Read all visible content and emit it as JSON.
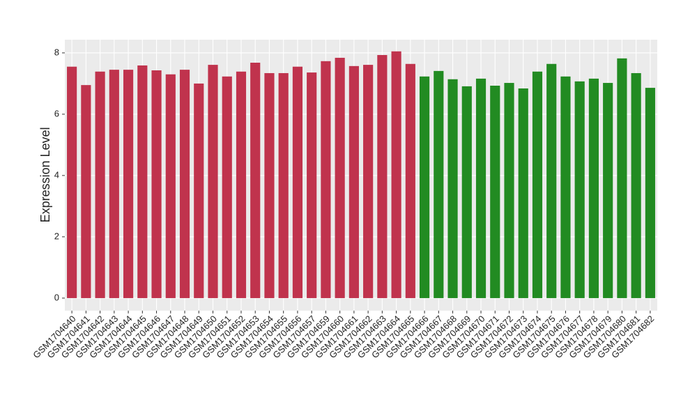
{
  "chart_data": {
    "type": "bar",
    "y_label": "Expression Level",
    "categories": [
      "GSM1704640",
      "GSM1704641",
      "GSM1704642",
      "GSM1704643",
      "GSM1704644",
      "GSM1704645",
      "GSM1704646",
      "GSM1704647",
      "GSM1704648",
      "GSM1704649",
      "GSM1704650",
      "GSM1704651",
      "GSM1704652",
      "GSM1704653",
      "GSM1704654",
      "GSM1704655",
      "GSM1704656",
      "GSM1704657",
      "GSM1704659",
      "GSM1704660",
      "GSM1704661",
      "GSM1704662",
      "GSM1704663",
      "GSM1704664",
      "GSM1704665",
      "GSM1704666",
      "GSM1704667",
      "GSM1704668",
      "GSM1704669",
      "GSM1704670",
      "GSM1704671",
      "GSM1704672",
      "GSM1704673",
      "GSM1704674",
      "GSM1704675",
      "GSM1704676",
      "GSM1704677",
      "GSM1704678",
      "GSM1704679",
      "GSM1704680",
      "GSM1704681",
      "GSM1704682"
    ],
    "values": [
      7.55,
      6.95,
      7.39,
      7.45,
      7.45,
      7.59,
      7.43,
      7.3,
      7.45,
      7.0,
      7.61,
      7.23,
      7.39,
      7.68,
      7.34,
      7.34,
      7.55,
      7.36,
      7.73,
      7.84,
      7.57,
      7.61,
      7.93,
      8.05,
      7.64,
      7.23,
      7.41,
      7.14,
      6.91,
      7.16,
      6.93,
      7.02,
      6.84,
      7.39,
      7.64,
      7.23,
      7.07,
      7.16,
      7.02,
      7.82,
      7.34,
      6.86
    ],
    "colors": [
      "#c0334d",
      "#c0334d",
      "#c0334d",
      "#c0334d",
      "#c0334d",
      "#c0334d",
      "#c0334d",
      "#c0334d",
      "#c0334d",
      "#c0334d",
      "#c0334d",
      "#c0334d",
      "#c0334d",
      "#c0334d",
      "#c0334d",
      "#c0334d",
      "#c0334d",
      "#c0334d",
      "#c0334d",
      "#c0334d",
      "#c0334d",
      "#c0334d",
      "#c0334d",
      "#c0334d",
      "#c0334d",
      "#228b22",
      "#228b22",
      "#228b22",
      "#228b22",
      "#228b22",
      "#228b22",
      "#228b22",
      "#228b22",
      "#228b22",
      "#228b22",
      "#228b22",
      "#228b22",
      "#228b22",
      "#228b22",
      "#228b22",
      "#228b22",
      "#228b22"
    ],
    "ylim": [
      -0.41,
      8.43
    ],
    "yticks": [
      0,
      2,
      4,
      6,
      8
    ],
    "grid": true
  }
}
